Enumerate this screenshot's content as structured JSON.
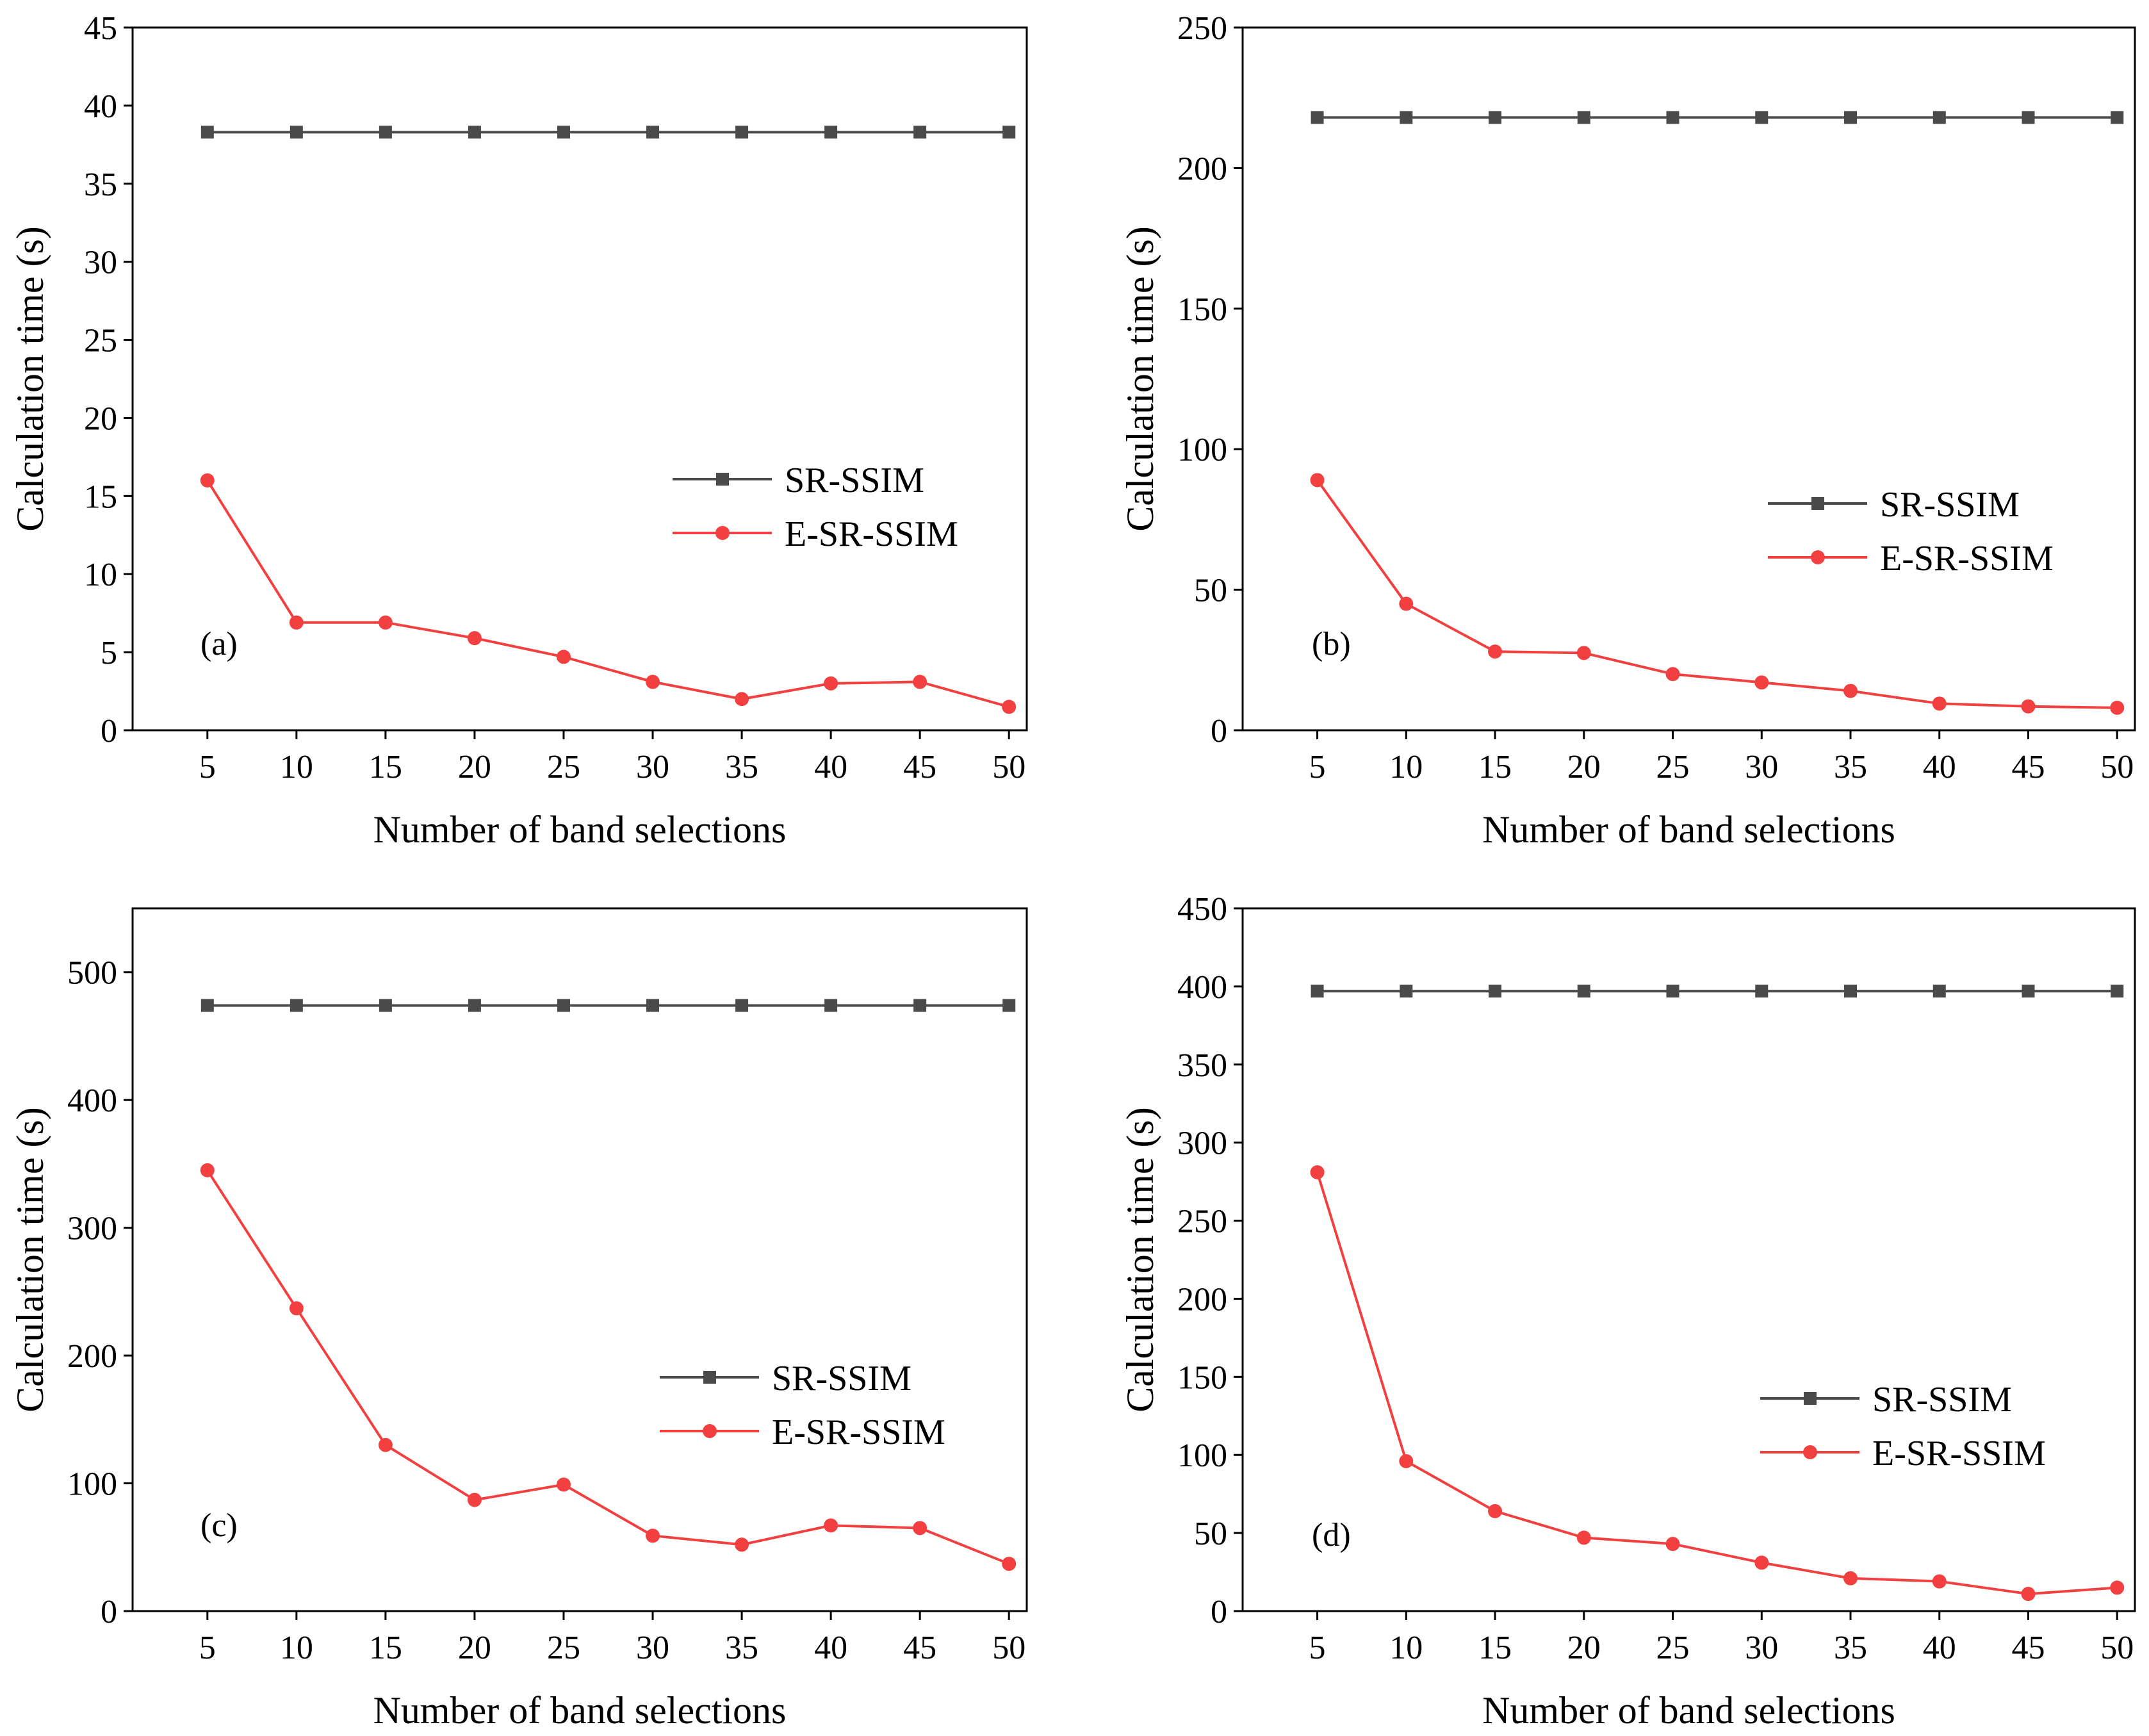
{
  "chart_data": [
    {
      "type": "line",
      "panel": "(a)",
      "xlabel": "Number of band selections",
      "ylabel": "Calculation time (s)",
      "x": [
        5,
        10,
        15,
        20,
        25,
        30,
        35,
        40,
        45,
        50
      ],
      "xlim": [
        0.8,
        51
      ],
      "ylim": [
        0,
        45
      ],
      "yticks": [
        0,
        5,
        10,
        15,
        20,
        25,
        30,
        35,
        40,
        45
      ],
      "legend_position": "center-right",
      "series": [
        {
          "name": "SR-SSIM",
          "marker": "square",
          "color": "#4a4a4a",
          "values": [
            38.3,
            38.3,
            38.3,
            38.3,
            38.3,
            38.3,
            38.3,
            38.3,
            38.3,
            38.3
          ]
        },
        {
          "name": "E-SR-SSIM",
          "marker": "circle",
          "color": "#f24040",
          "values": [
            16.0,
            6.9,
            6.9,
            5.9,
            4.7,
            3.1,
            2.0,
            3.0,
            3.1,
            1.5
          ]
        }
      ]
    },
    {
      "type": "line",
      "panel": "(b)",
      "xlabel": "Number of band selections",
      "ylabel": "Calculation time (s)",
      "x": [
        5,
        10,
        15,
        20,
        25,
        30,
        35,
        40,
        45,
        50
      ],
      "xlim": [
        0.8,
        51
      ],
      "ylim": [
        0,
        250
      ],
      "yticks": [
        0,
        50,
        100,
        150,
        200,
        250
      ],
      "legend_position": "center-right",
      "series": [
        {
          "name": "SR-SSIM",
          "marker": "square",
          "color": "#4a4a4a",
          "values": [
            218,
            218,
            218,
            218,
            218,
            218,
            218,
            218,
            218,
            218
          ]
        },
        {
          "name": "E-SR-SSIM",
          "marker": "circle",
          "color": "#f24040",
          "values": [
            89,
            45,
            28,
            27.5,
            20,
            17,
            14,
            9.5,
            8.5,
            8
          ]
        }
      ]
    },
    {
      "type": "line",
      "panel": "(c)",
      "xlabel": "Number of band selections",
      "ylabel": "Calculation time (s)",
      "x": [
        5,
        10,
        15,
        20,
        25,
        30,
        35,
        40,
        45,
        50
      ],
      "xlim": [
        0.8,
        51
      ],
      "ylim": [
        0,
        550
      ],
      "yticks": [
        0,
        100,
        200,
        300,
        400,
        500
      ],
      "legend_position": "center-right",
      "series": [
        {
          "name": "SR-SSIM",
          "marker": "square",
          "color": "#4a4a4a",
          "values": [
            474,
            474,
            474,
            474,
            474,
            474,
            474,
            474,
            474,
            474
          ]
        },
        {
          "name": "E-SR-SSIM",
          "marker": "circle",
          "color": "#f24040",
          "values": [
            345,
            237,
            130,
            87,
            99,
            59,
            52,
            67,
            65,
            37
          ]
        }
      ]
    },
    {
      "type": "line",
      "panel": "(d)",
      "xlabel": "Number of band selections",
      "ylabel": "Calculation time (s)",
      "x": [
        5,
        10,
        15,
        20,
        25,
        30,
        35,
        40,
        45,
        50
      ],
      "xlim": [
        0.8,
        51
      ],
      "ylim": [
        0,
        450
      ],
      "yticks": [
        0,
        50,
        100,
        150,
        200,
        250,
        300,
        350,
        400,
        450
      ],
      "legend_position": "center-right",
      "series": [
        {
          "name": "SR-SSIM",
          "marker": "square",
          "color": "#4a4a4a",
          "values": [
            397,
            397,
            397,
            397,
            397,
            397,
            397,
            397,
            397,
            397
          ]
        },
        {
          "name": "E-SR-SSIM",
          "marker": "circle",
          "color": "#f24040",
          "values": [
            281,
            96,
            64,
            47,
            43,
            31,
            21,
            19,
            11,
            15
          ]
        }
      ]
    }
  ]
}
